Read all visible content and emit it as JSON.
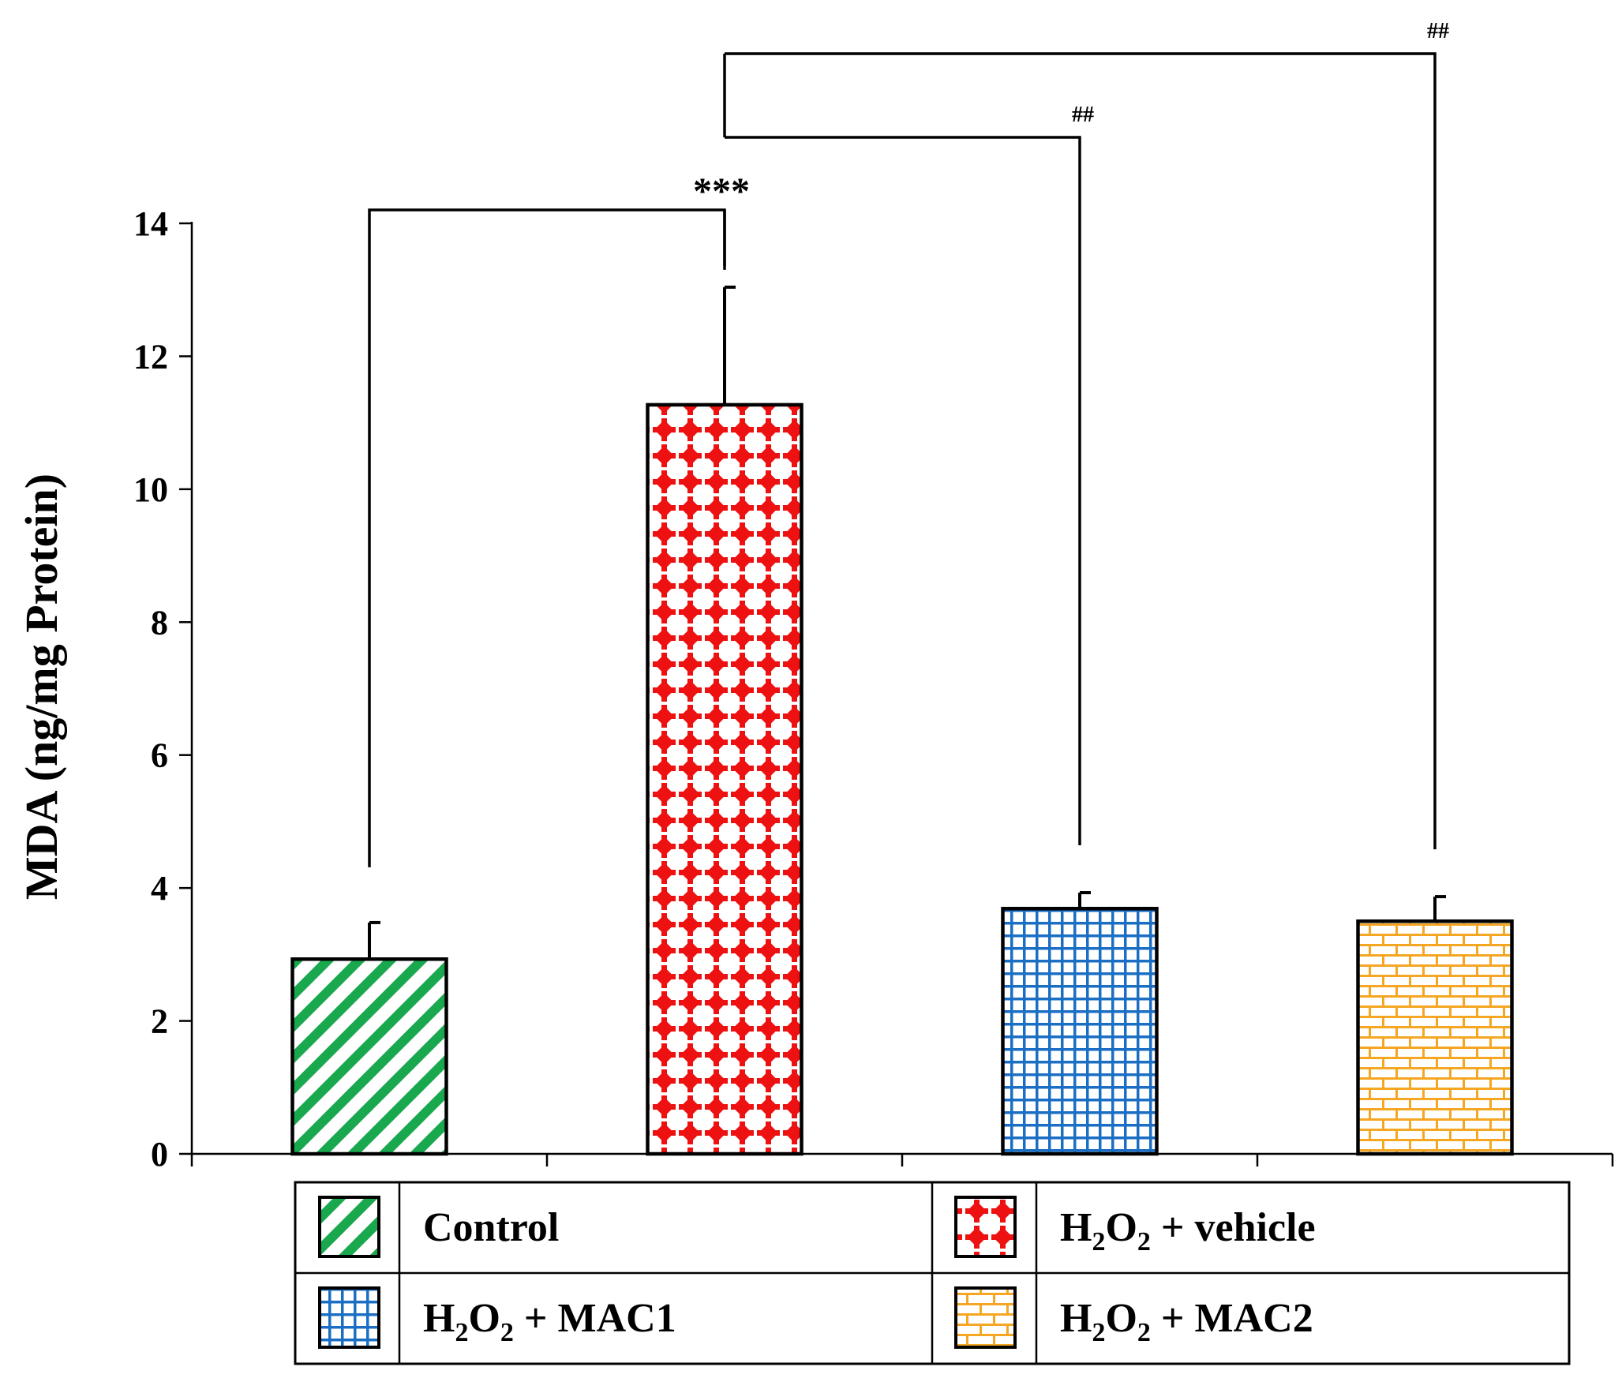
{
  "chart_data": {
    "type": "bar",
    "title": "",
    "xlabel": "",
    "ylabel": "MDA (ng/mg Protein)",
    "ylim": [
      0,
      14
    ],
    "yticks": [
      "0",
      "2",
      "4",
      "6",
      "8",
      "10",
      "12",
      "14"
    ],
    "grid": false,
    "categories": [
      "Control",
      "H2O2 + vehicle",
      "H2O2 + MAC1",
      "H2O2 + MAC2"
    ],
    "values": [
      2.93,
      11.27,
      3.69,
      3.5
    ],
    "errors": [
      0.55,
      1.77,
      0.24,
      0.37
    ],
    "colors": [
      "#1aa84f",
      "#ee1111",
      "#1a6fc4",
      "#f5a623"
    ],
    "patterns": [
      "diagonal-stripes",
      "diamond-dots",
      "grid",
      "bricks"
    ],
    "significance": [
      {
        "from": 0,
        "to": 1,
        "label": "***"
      },
      {
        "from": 1,
        "to": 2,
        "label": "##"
      },
      {
        "from": 1,
        "to": 3,
        "label": "##"
      }
    ],
    "legend": {
      "placement": "bottom",
      "entries": [
        {
          "pre": "Control",
          "sub": "",
          "post": ""
        },
        {
          "pre": "H",
          "sub": "2",
          "mid": "O",
          "sub2": "2",
          "post": " + vehicle"
        },
        {
          "pre": "H",
          "sub": "2",
          "mid": "O",
          "sub2": "2",
          "post": " + MAC1"
        },
        {
          "pre": "H",
          "sub": "2",
          "mid": "O",
          "sub2": "2",
          "post": " + MAC2"
        }
      ]
    }
  }
}
